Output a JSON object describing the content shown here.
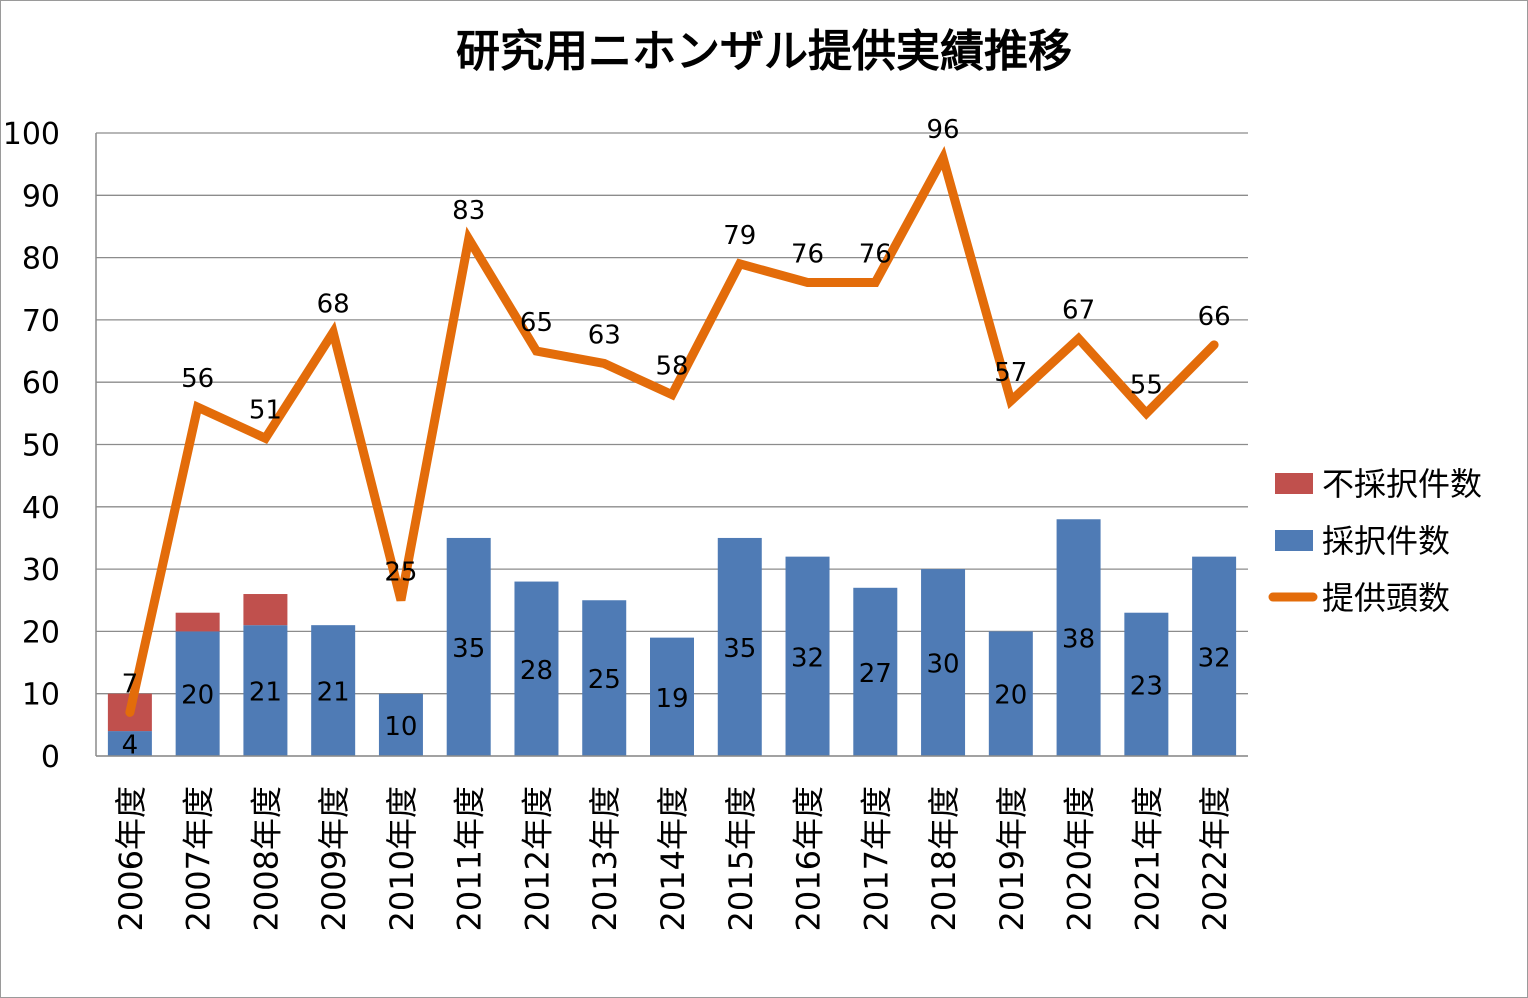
{
  "chart_data": {
    "type": "bar",
    "title": "研究用ニホンザル提供実績推移",
    "categories": [
      "2006年度",
      "2007年度",
      "2008年度",
      "2009年度",
      "2010年度",
      "2011年度",
      "2012年度",
      "2013年度",
      "2014年度",
      "2015年度",
      "2016年度",
      "2017年度",
      "2018年度",
      "2019年度",
      "2020年度",
      "2021年度",
      "2022年度"
    ],
    "ylim": [
      0,
      100
    ],
    "yticks": [
      0,
      10,
      20,
      30,
      40,
      50,
      60,
      70,
      80,
      90,
      100
    ],
    "grid": true,
    "legend_position": "right",
    "series": [
      {
        "name": "採択件数",
        "kind": "bar",
        "stacked": true,
        "color": "#4f7bb5",
        "values": [
          4,
          20,
          21,
          21,
          10,
          35,
          28,
          25,
          19,
          35,
          32,
          27,
          30,
          20,
          38,
          23,
          32
        ]
      },
      {
        "name": "不採択件数",
        "kind": "bar",
        "stacked": true,
        "color": "#c0504d",
        "values": [
          6,
          3,
          5,
          0,
          0,
          0,
          0,
          0,
          0,
          0,
          0,
          0,
          0,
          0,
          0,
          0,
          0
        ]
      },
      {
        "name": "提供頭数",
        "kind": "line",
        "color": "#e36c0a",
        "values": [
          7,
          56,
          51,
          68,
          25,
          83,
          65,
          63,
          58,
          79,
          76,
          76,
          96,
          57,
          67,
          55,
          66
        ]
      }
    ],
    "legend": [
      "不採択件数",
      "採択件数",
      "提供頭数"
    ]
  }
}
